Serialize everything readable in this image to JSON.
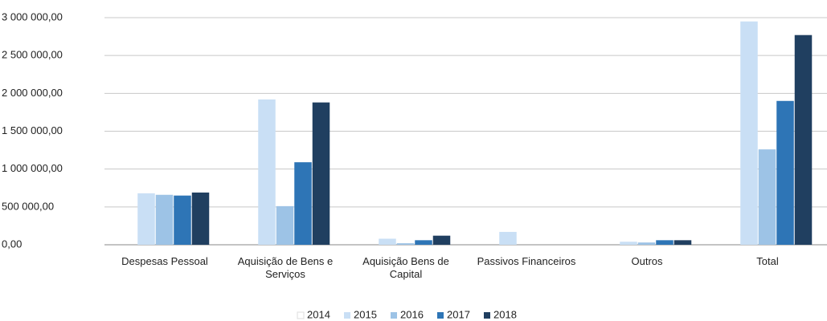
{
  "chart_data": {
    "type": "bar",
    "categories": [
      "Despesas Pessoal",
      "Aquisição de Bens e Serviços",
      "Aquisição Bens de Capital",
      "Passivos Financeiros",
      "Outros",
      "Total"
    ],
    "series": [
      {
        "name": "2014",
        "color": "#ffffff",
        "values": [
          0,
          0,
          0,
          0,
          0,
          0
        ]
      },
      {
        "name": "2015",
        "color": "#c9dff5",
        "values": [
          680000,
          1920000,
          80000,
          170000,
          40000,
          2950000
        ]
      },
      {
        "name": "2016",
        "color": "#9dc3e6",
        "values": [
          660000,
          510000,
          20000,
          0,
          30000,
          1260000
        ]
      },
      {
        "name": "2017",
        "color": "#2e75b6",
        "values": [
          650000,
          1090000,
          60000,
          0,
          60000,
          1900000
        ]
      },
      {
        "name": "2018",
        "color": "#203f60",
        "values": [
          690000,
          1880000,
          120000,
          0,
          60000,
          2770000
        ]
      }
    ],
    "ylim": [
      0,
      3000000
    ],
    "yticks": [
      {
        "value": 0,
        "label": "0,00"
      },
      {
        "value": 500000,
        "label": "500 000,00"
      },
      {
        "value": 1000000,
        "label": "1 000 000,00"
      },
      {
        "value": 1500000,
        "label": "1 500 000,00"
      },
      {
        "value": 2000000,
        "label": "2 000 000,00"
      },
      {
        "value": 2500000,
        "label": "2 500 000,00"
      },
      {
        "value": 3000000,
        "label": "3 000 000,00"
      }
    ],
    "grid": true,
    "legend": "bottom"
  }
}
